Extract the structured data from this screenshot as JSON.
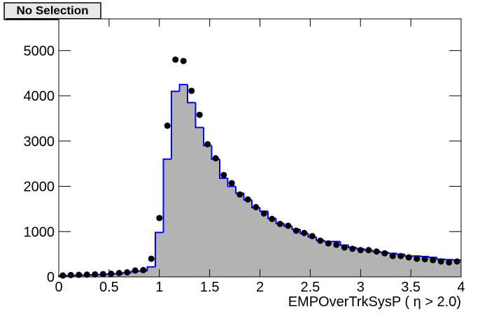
{
  "header": {
    "button": "No Selection"
  },
  "chart_data": {
    "type": "histogram",
    "x_label": "EMPOverTrkSysP ( η > 2.0)",
    "bins": [
      0,
      0.08,
      0.16,
      0.24,
      0.32,
      0.4,
      0.48,
      0.56,
      0.64,
      0.72,
      0.8,
      0.88,
      0.96,
      1.04,
      1.12,
      1.2,
      1.28,
      1.36,
      1.44,
      1.52,
      1.6,
      1.68,
      1.76,
      1.84,
      1.92,
      2,
      2.08,
      2.16,
      2.24,
      2.32,
      2.4,
      2.48,
      2.56,
      2.64,
      2.72,
      2.8,
      2.88,
      2.96,
      3.04,
      3.12,
      3.2,
      3.28,
      3.36,
      3.44,
      3.52,
      3.6,
      3.68,
      3.76,
      3.84,
      3.92,
      4
    ],
    "series": [
      {
        "style": "filled",
        "color": "#b3b3b3",
        "edge_color": "#0000ff",
        "values": [
          20,
          30,
          35,
          40,
          45,
          50,
          60,
          70,
          90,
          120,
          130,
          220,
          980,
          2600,
          4100,
          4250,
          3850,
          3300,
          2900,
          2600,
          2180,
          2000,
          1850,
          1700,
          1530,
          1450,
          1290,
          1180,
          1120,
          1050,
          960,
          880,
          810,
          780,
          780,
          700,
          650,
          620,
          590,
          560,
          540,
          520,
          500,
          460,
          460,
          450,
          430,
          390,
          380,
          370
        ]
      },
      {
        "style": "points",
        "color": "#000000",
        "values": [
          30,
          40,
          45,
          50,
          55,
          60,
          70,
          85,
          100,
          140,
          150,
          400,
          1300,
          3340,
          4800,
          4770,
          4110,
          3580,
          2930,
          2620,
          2250,
          2070,
          1820,
          1710,
          1540,
          1400,
          1280,
          1170,
          1130,
          1020,
          970,
          900,
          800,
          740,
          710,
          650,
          620,
          590,
          590,
          560,
          520,
          460,
          460,
          430,
          400,
          390,
          370,
          340,
          320,
          340
        ]
      }
    ],
    "xlim": [
      0,
      4
    ],
    "ylim": [
      0,
      5700
    ],
    "xticks": [
      0,
      0.5,
      1,
      1.5,
      2,
      2.5,
      3,
      3.5,
      4
    ],
    "yticks": [
      0,
      1000,
      2000,
      3000,
      4000,
      5000
    ]
  }
}
